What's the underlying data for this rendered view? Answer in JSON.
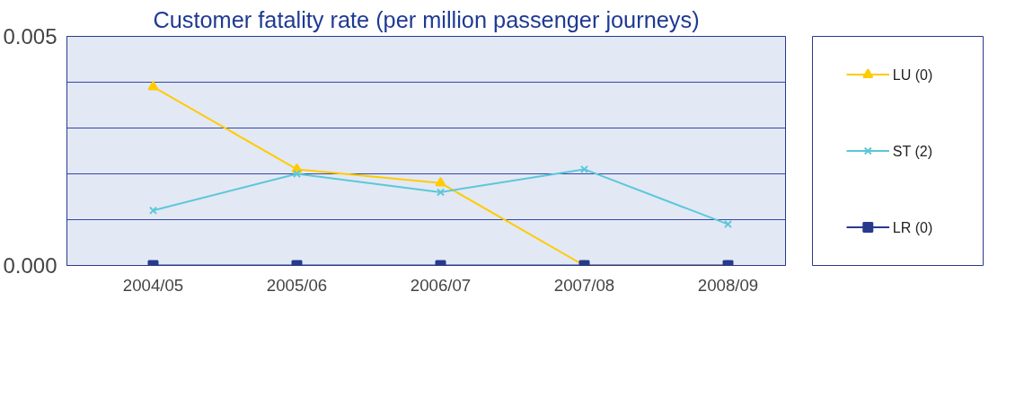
{
  "chart_data": {
    "type": "line",
    "title": "Customer fatality rate (per million passenger journeys)",
    "categories": [
      "2004/05",
      "2005/06",
      "2006/07",
      "2007/08",
      "2008/09"
    ],
    "series": [
      {
        "name": "LU (0)",
        "color": "#ffcc00",
        "marker": "triangle",
        "values": [
          0.0039,
          0.0021,
          0.0018,
          0,
          0
        ]
      },
      {
        "name": "ST (2)",
        "color": "#5bc8d8",
        "marker": "cross",
        "values": [
          0.0012,
          0.002,
          0.0016,
          0.0021,
          0.0009
        ]
      },
      {
        "name": "LR (0)",
        "color": "#283a8c",
        "marker": "square",
        "values": [
          0,
          0,
          0,
          0,
          0
        ]
      }
    ],
    "ylim": [
      0,
      0.005
    ],
    "yticks": [
      {
        "value": 0,
        "label": "0.000"
      },
      {
        "value": 0.001,
        "label": null
      },
      {
        "value": 0.002,
        "label": null
      },
      {
        "value": 0.003,
        "label": null
      },
      {
        "value": 0.004,
        "label": null
      },
      {
        "value": 0.005,
        "label": "0.005"
      }
    ],
    "grid": "y",
    "legend": "right",
    "line_style": "solid"
  }
}
